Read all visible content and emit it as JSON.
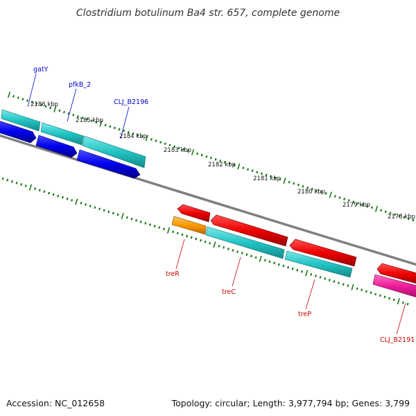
{
  "title": "Clostridium botulinum Ba4 str. 657, complete genome",
  "footer": {
    "accession": "Accession: NC_012658",
    "topology": "Topology: circular; Length: 3,977,794 bp; Genes: 3,799"
  },
  "kbp_labels": [
    "2186 kbp",
    "2185 kbp",
    "2184 kbp",
    "2183 kbp",
    "2182 kbp",
    "2181 kbp",
    "2180 kbp",
    "2179 kbp",
    "2178 kbp"
  ],
  "genes_top": [
    {
      "label": "gatY",
      "color": "#0000cc"
    },
    {
      "label": "pfkB_2",
      "color": "#0000cc"
    },
    {
      "label": "CLJ_B2196",
      "color": "#0000cc"
    }
  ],
  "genes_bottom": [
    {
      "label": "treR",
      "color": "#cc0000"
    },
    {
      "label": "treC",
      "color": "#cc0000"
    },
    {
      "label": "treP",
      "color": "#cc0000"
    },
    {
      "label": "CLJ_B2191",
      "color": "#cc0000"
    }
  ],
  "colors": {
    "backbone": "#7f7f7f",
    "tick": "#1a7a1a",
    "blue_gene": "#1010e0",
    "cyan_gene": "#26c6c6",
    "red_gene": "#ee0000",
    "orange_gene": "#ff9900",
    "magenta_gene": "#ee1a99"
  }
}
